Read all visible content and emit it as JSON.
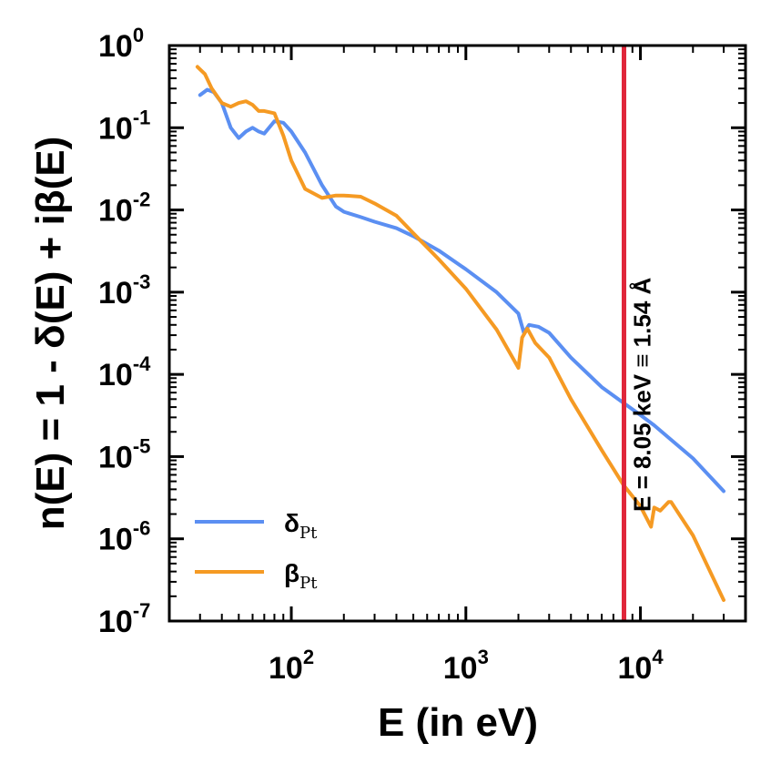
{
  "chart_data": {
    "type": "line",
    "xlabel": "E (in eV)",
    "ylabel": "n(E) = 1 - δ(E) + iβ(E)",
    "xscale": "log",
    "yscale": "log",
    "xlim": [
      20,
      40000
    ],
    "ylim": [
      1e-07,
      1
    ],
    "x_ticks": [
      {
        "value": 100,
        "base": "10",
        "exp": "2"
      },
      {
        "value": 1000,
        "base": "10",
        "exp": "3"
      },
      {
        "value": 10000,
        "base": "10",
        "exp": "4"
      }
    ],
    "y_ticks": [
      {
        "value": 1,
        "base": "10",
        "exp": "0"
      },
      {
        "value": 0.1,
        "base": "10",
        "exp": "-1"
      },
      {
        "value": 0.01,
        "base": "10",
        "exp": "-2"
      },
      {
        "value": 0.001,
        "base": "10",
        "exp": "-3"
      },
      {
        "value": 0.0001,
        "base": "10",
        "exp": "-4"
      },
      {
        "value": 1e-05,
        "base": "10",
        "exp": "-5"
      },
      {
        "value": 1e-06,
        "base": "10",
        "exp": "-6"
      },
      {
        "value": 1e-07,
        "base": "10",
        "exp": "-7"
      }
    ],
    "legend_position": "bottom-left",
    "series": [
      {
        "name": "δ",
        "subscript": "Pt",
        "color": "#5b8ff2",
        "x": [
          30,
          33,
          36,
          40,
          45,
          50,
          55,
          60,
          65,
          70,
          80,
          90,
          100,
          120,
          150,
          180,
          200,
          250,
          300,
          400,
          500,
          700,
          1000,
          1500,
          2000,
          2150,
          2300,
          2600,
          3000,
          4000,
          6000,
          8000,
          10000,
          12000,
          15000,
          20000,
          30000
        ],
        "y": [
          0.25,
          0.29,
          0.27,
          0.2,
          0.1,
          0.075,
          0.09,
          0.1,
          0.09,
          0.085,
          0.12,
          0.115,
          0.09,
          0.05,
          0.02,
          0.011,
          0.0095,
          0.0082,
          0.0072,
          0.006,
          0.0048,
          0.0032,
          0.0019,
          0.001,
          0.00055,
          0.00032,
          0.0004,
          0.00038,
          0.00032,
          0.00016,
          7e-05,
          4.5e-05,
          3.2e-05,
          2.4e-05,
          1.6e-05,
          9.5e-06,
          3.8e-06
        ]
      },
      {
        "name": "β",
        "subscript": "Pt",
        "color": "#f59a23",
        "x": [
          29,
          32,
          35,
          40,
          45,
          50,
          55,
          60,
          65,
          70,
          80,
          90,
          100,
          120,
          150,
          180,
          200,
          250,
          300,
          400,
          500,
          700,
          1000,
          1500,
          2000,
          2100,
          2250,
          2500,
          3000,
          4000,
          6000,
          8000,
          10000,
          11500,
          12000,
          13000,
          14500,
          15000,
          20000,
          30000
        ],
        "y": [
          0.55,
          0.45,
          0.3,
          0.2,
          0.18,
          0.2,
          0.21,
          0.19,
          0.16,
          0.16,
          0.15,
          0.08,
          0.04,
          0.018,
          0.014,
          0.015,
          0.015,
          0.0145,
          0.012,
          0.0085,
          0.0052,
          0.0025,
          0.0011,
          0.00035,
          0.00012,
          0.00028,
          0.00036,
          0.00024,
          0.00016,
          5e-05,
          1.2e-05,
          4.5e-06,
          2.5e-06,
          1.4e-06,
          2.4e-06,
          2.2e-06,
          2.8e-06,
          2.8e-06,
          1.1e-06,
          1.8e-07
        ]
      }
    ],
    "vline": {
      "x": 8050,
      "color": "#e0263a",
      "label": "E = 8.05 keV ≡ 1.54 Å"
    }
  }
}
